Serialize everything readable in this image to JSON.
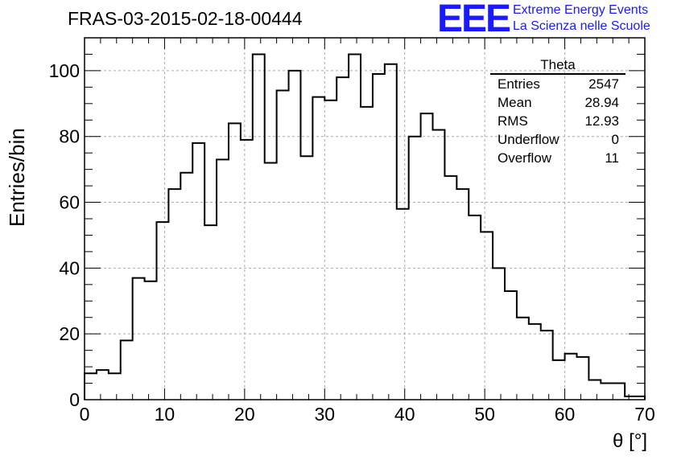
{
  "title": "FRAS-03-2015-02-18-00444",
  "logo": {
    "text": "EEE",
    "line1": "Extreme Energy Events",
    "line2": "La Scienza nelle Scuole",
    "color": "#1a1aff"
  },
  "stats": {
    "title": "Theta",
    "rows": [
      {
        "label": "Entries",
        "value": "2547"
      },
      {
        "label": "Mean",
        "value": "28.94"
      },
      {
        "label": "RMS",
        "value": "12.93"
      },
      {
        "label": "Underflow",
        "value": "0"
      },
      {
        "label": "Overflow",
        "value": "11"
      }
    ]
  },
  "chart_data": {
    "type": "bar",
    "style": "step-histogram",
    "title": "FRAS-03-2015-02-18-00444",
    "xlabel": "θ [°]",
    "ylabel": "Entries/bin",
    "xlim": [
      0,
      70
    ],
    "ylim": [
      0,
      110
    ],
    "x_ticks": [
      0,
      10,
      20,
      30,
      40,
      50,
      60,
      70
    ],
    "y_ticks": [
      0,
      20,
      40,
      60,
      80,
      100
    ],
    "grid": true,
    "bin_width": 1.5,
    "bin_start": 0,
    "values": [
      8,
      9,
      8,
      18,
      37,
      36,
      54,
      64,
      69,
      78,
      53,
      73,
      84,
      79,
      105,
      72,
      94,
      100,
      74,
      92,
      91,
      98,
      105,
      89,
      99,
      102,
      58,
      80,
      87,
      82,
      68,
      64,
      56,
      51,
      40,
      33,
      25,
      23,
      21,
      12,
      14,
      13,
      6,
      5,
      5,
      1,
      1,
      0,
      0
    ]
  }
}
